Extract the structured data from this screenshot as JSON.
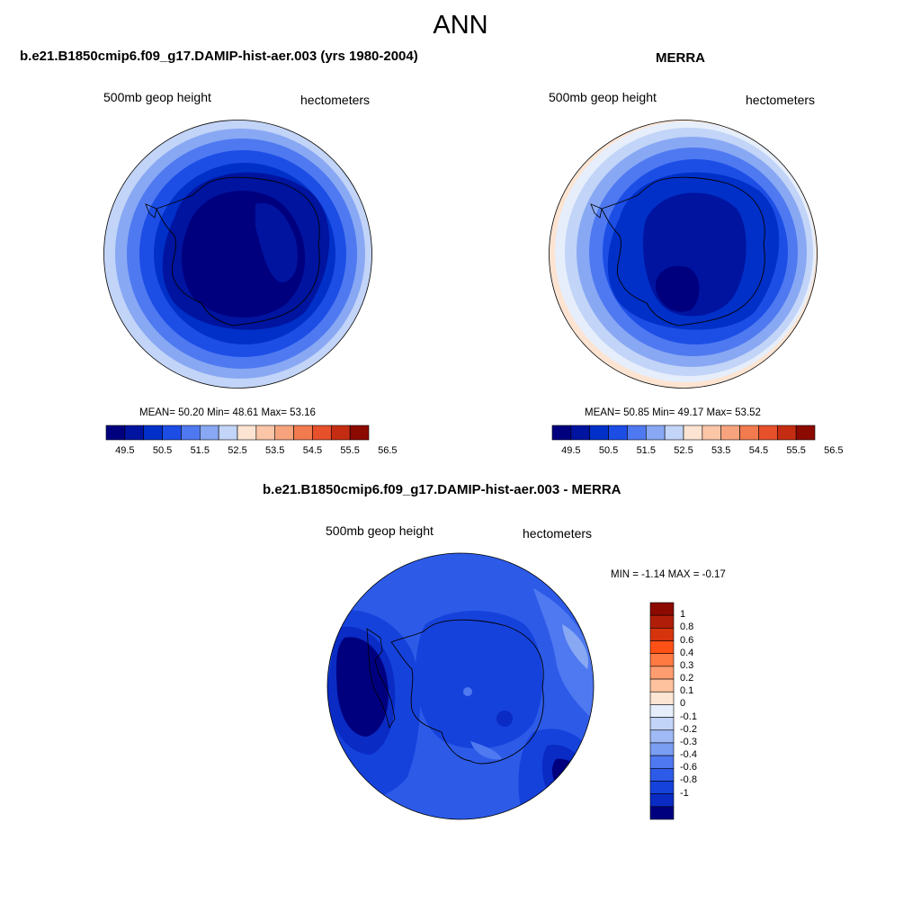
{
  "main_title": "ANN",
  "colors": {
    "abs_scale": [
      "#00007f",
      "#0014a0",
      "#0030c8",
      "#1c4ee6",
      "#4f79f0",
      "#88a8f4",
      "#c2d4f7",
      "#fde4d2",
      "#fbc5a8",
      "#f7a47e",
      "#f27a4f",
      "#e6512c",
      "#c52d12",
      "#8c0a00"
    ],
    "diff_scale": [
      "#8c0a00",
      "#b01e0a",
      "#d6340c",
      "#ff5015",
      "#ff7a42",
      "#ff9d70",
      "#ffc29e",
      "#fde5d3",
      "#e6eefb",
      "#c2d4f7",
      "#9fbaf5",
      "#7a9ef2",
      "#4f79f0",
      "#2d5be8",
      "#1642dc",
      "#0a2bc4",
      "#00007f"
    ]
  },
  "panels": {
    "model": {
      "title": "b.e21.B1850cmip6.f09_g17.DAMIP-hist-aer.003 (yrs 1980-2004)",
      "var_label": "500mb geop height",
      "units": "hectometers",
      "stats": "MEAN=  50.20  Min=  48.61  Max=  53.16",
      "ticks": [
        "49.5",
        "50.5",
        "51.5",
        "52.5",
        "53.5",
        "54.5",
        "55.5",
        "56.5"
      ]
    },
    "obs": {
      "title": "MERRA",
      "var_label": "500mb geop height",
      "units": "hectometers",
      "stats": "MEAN=  50.85  Min=  49.17  Max=  53.52",
      "ticks": [
        "49.5",
        "50.5",
        "51.5",
        "52.5",
        "53.5",
        "54.5",
        "55.5",
        "56.5"
      ]
    },
    "diff": {
      "title": "b.e21.B1850cmip6.f09_g17.DAMIP-hist-aer.003 - MERRA",
      "var_label": "500mb geop height",
      "units": "hectometers",
      "stats": "MIN =  -1.14 MAX =  -0.17",
      "ticks": [
        "1",
        "0.8",
        "0.6",
        "0.4",
        "0.3",
        "0.2",
        "0.1",
        "0",
        "-0.1",
        "-0.2",
        "-0.3",
        "-0.4",
        "-0.6",
        "-0.8",
        "-1"
      ]
    }
  }
}
